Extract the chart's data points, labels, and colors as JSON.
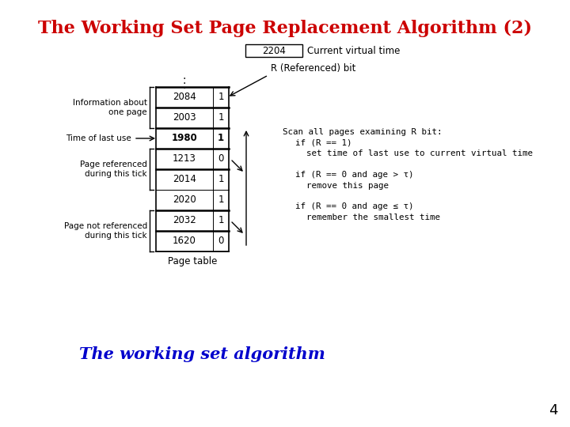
{
  "title": "The Working Set Page Replacement Algorithm (2)",
  "subtitle": "The working set algorithm",
  "title_color": "#CC0000",
  "subtitle_color": "#0000CC",
  "background_color": "#FFFFFF",
  "page_number": "4",
  "current_virtual_time": "2204",
  "current_vt_label": "Current virtual time",
  "page_table_label": "Page table",
  "right_label_r": "R (Referenced) bit",
  "rows": [
    {
      "time": "2084",
      "r": "1",
      "bold": false,
      "thick_top": true
    },
    {
      "time": "2003",
      "r": "1",
      "bold": false,
      "thick_top": true
    },
    {
      "time": "1980",
      "r": "1",
      "bold": true,
      "thick_top": true
    },
    {
      "time": "1213",
      "r": "0",
      "bold": false,
      "thick_top": true
    },
    {
      "time": "2014",
      "r": "1",
      "bold": false,
      "thick_top": true
    },
    {
      "time": "2020",
      "r": "1",
      "bold": false,
      "thick_top": false
    },
    {
      "time": "2032",
      "r": "1",
      "bold": false,
      "thick_top": true
    },
    {
      "time": "1620",
      "r": "0",
      "bold": false,
      "thick_top": true
    }
  ],
  "scan_lines": [
    "Scan all pages examining R bit:",
    "    if (R == 1)",
    "        set time of last use to current virtual time",
    "",
    "    if (R == 0 and age > τ)",
    "        remove this page",
    "",
    "    if (R == 0 and age ≤ τ)",
    "        remember the smallest time"
  ]
}
